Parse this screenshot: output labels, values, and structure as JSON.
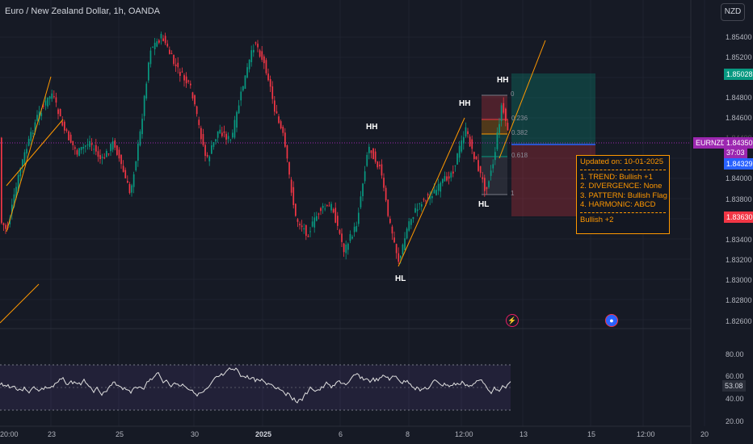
{
  "header": {
    "title": "Euro / New Zealand Dollar, 1h, OANDA",
    "currency_button": "NZD"
  },
  "price_axis": {
    "labels": [
      "1.85400",
      "1.85200",
      "1.84800",
      "1.84600",
      "1.84400",
      "1.84000",
      "1.83800",
      "1.83400",
      "1.83200",
      "1.83000",
      "1.82800",
      "1.82600"
    ]
  },
  "price_tags": {
    "upper_target": {
      "value": "1.85028",
      "color": "#089981"
    },
    "symbol": {
      "value": "EURNZD",
      "color": "#9c27b0"
    },
    "last_price": {
      "value": "1.84350",
      "color": "#9c27b0"
    },
    "countdown": {
      "value": "37:03"
    },
    "current": {
      "value": "1.84329",
      "color": "#2962ff"
    },
    "lower_stop": {
      "value": "1.83630",
      "color": "#f23645"
    }
  },
  "oscillator": {
    "axis_labels": [
      "80.00",
      "60.00",
      "40.00",
      "20.00"
    ],
    "current_value": "53.08"
  },
  "time_axis": {
    "labels": [
      "20:00",
      "23",
      "25",
      "30",
      "2025",
      "6",
      "8",
      "12:00",
      "13",
      "15",
      "12:00",
      "20"
    ]
  },
  "swing_labels": {
    "hh1": "HH",
    "hh2": "HH",
    "hh3": "HH",
    "hl1": "HL",
    "hl2": "HL"
  },
  "fib_labels": {
    "zero": "0",
    "f236": "0.236",
    "f382": "0.382",
    "f618": "0.618",
    "one": "1"
  },
  "info_box": {
    "updated": "Updated on: 10-01-2025",
    "line1": "1. TREND: Bullish +1",
    "line2": "2. DIVERGENCE: None",
    "line3": "3. PATTERN: Bullish Flag +1",
    "line4": "4. HARMONIC: ABCD",
    "summary": "Bullish +2",
    "accent": "#ff9800"
  },
  "colors": {
    "bull": "#089981",
    "bear": "#f23645",
    "background": "#161a25",
    "trendline": "#ff9800",
    "oscillator_line": "#ffffff"
  },
  "icons": {
    "event_1": "lightning-icon",
    "event_2": "flag-circle-icon"
  }
}
